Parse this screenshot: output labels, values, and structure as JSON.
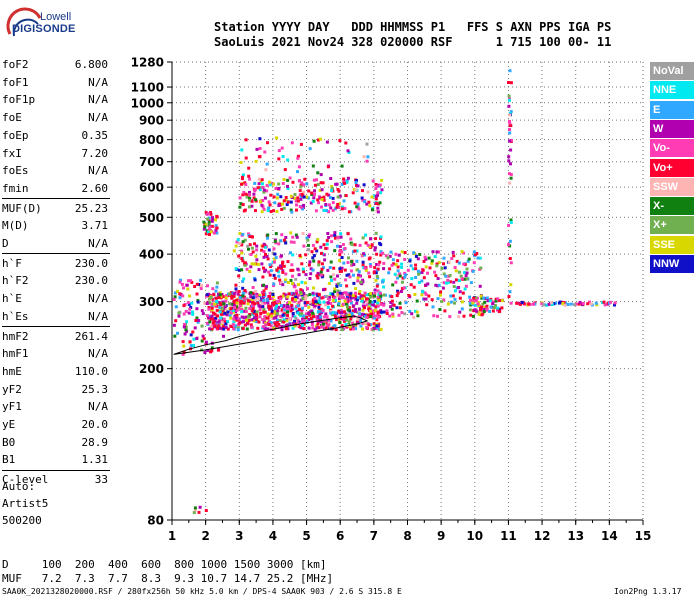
{
  "logo": {
    "line1": "Lowell",
    "line2": "DIGISONDE"
  },
  "header": {
    "line1": "Station YYYY DAY   DDD HHMMSS P1   FFS S AXN PPS IGA PS",
    "line2": "SaoLuis 2021 Nov24 328 020000 RSF      1 715 100 00- 11"
  },
  "params": [
    {
      "label": "foF2",
      "value": "6.800"
    },
    {
      "label": "foF1",
      "value": "N/A"
    },
    {
      "label": "foF1p",
      "value": "N/A"
    },
    {
      "label": "foE",
      "value": "N/A"
    },
    {
      "label": "foEp",
      "value": "0.35"
    },
    {
      "label": "fxI",
      "value": "7.20"
    },
    {
      "label": "foEs",
      "value": "N/A"
    },
    {
      "label": "fmin",
      "value": "2.60"
    },
    {
      "label": "MUF(D)",
      "value": "25.23"
    },
    {
      "label": "M(D)",
      "value": "3.71"
    },
    {
      "label": "D",
      "value": "N/A"
    },
    {
      "label": "h`F",
      "value": "230.0"
    },
    {
      "label": "h`F2",
      "value": "230.0"
    },
    {
      "label": "h`E",
      "value": "N/A"
    },
    {
      "label": "h`Es",
      "value": "N/A"
    },
    {
      "label": "hmF2",
      "value": "261.4"
    },
    {
      "label": "hmF1",
      "value": "N/A"
    },
    {
      "label": "hmE",
      "value": "110.0"
    },
    {
      "label": "yF2",
      "value": "25.3"
    },
    {
      "label": "yF1",
      "value": "N/A"
    },
    {
      "label": "yE",
      "value": "20.0"
    },
    {
      "label": "B0",
      "value": "28.9"
    },
    {
      "label": "B1",
      "value": "1.31"
    },
    {
      "label": "C-level",
      "value": "33"
    }
  ],
  "autoscaling": {
    "line1": "Auto:",
    "line2": "Artist5",
    "line3": "500200"
  },
  "legend": [
    {
      "label": "NoVal",
      "color": "#a0a0a0"
    },
    {
      "label": "NNE",
      "color": "#00e8f0"
    },
    {
      "label": "E",
      "color": "#30a8ff"
    },
    {
      "label": "W",
      "color": "#b000b0"
    },
    {
      "label": "Vo-",
      "color": "#ff3cb4"
    },
    {
      "label": "Vo+",
      "color": "#ff0030"
    },
    {
      "label": "SSW",
      "color": "#ffb4b4"
    },
    {
      "label": "X-",
      "color": "#108010"
    },
    {
      "label": "X+",
      "color": "#70b050"
    },
    {
      "label": "SSE",
      "color": "#d8d800"
    },
    {
      "label": "NNW",
      "color": "#1010c8"
    }
  ],
  "muf_table": {
    "line1": "D     100  200  400  600  800 1000 1500 3000 [km]",
    "line2": "MUF   7.2  7.3  7.7  8.3  9.3 10.7 14.7 25.2 [MHz]"
  },
  "footer": {
    "left": "SAA0K_2021328020000.RSF / 280fx256h 50 kHz 5.0 km / DPS-4 SAA0K 903 / 2.6 S 315.8 E",
    "right": "Ion2Png 1.3.17"
  },
  "chart_data": {
    "type": "scatter",
    "title": "",
    "xlabel": "",
    "ylabel": "",
    "xlim": [
      1,
      15
    ],
    "ylim": [
      80,
      1280
    ],
    "y_scale": "log",
    "x_ticks": [
      1,
      2,
      3,
      4,
      5,
      6,
      7,
      8,
      9,
      10,
      11,
      12,
      13,
      14,
      15
    ],
    "y_ticks": [
      80,
      200,
      300,
      400,
      500,
      600,
      700,
      800,
      900,
      1000,
      1100,
      1280
    ],
    "grid": true,
    "grid_style": "dotted",
    "trace": {
      "name": "",
      "x": [
        1.05,
        1.5,
        2.0,
        2.6,
        3.0,
        3.5,
        4.0,
        4.5,
        5.0,
        5.5,
        6.0,
        6.4,
        6.6,
        6.8,
        6.5,
        6.0,
        5.0,
        4.0,
        3.0,
        2.0,
        1.05
      ],
      "y": [
        218,
        225,
        231,
        237,
        243,
        249,
        254,
        259,
        264,
        268,
        272,
        275,
        272,
        267,
        262,
        257,
        248,
        240,
        232,
        224,
        218
      ]
    },
    "echo_regions": [
      {
        "f0": 1.0,
        "f1": 2.5,
        "h0": 220,
        "h1": 345,
        "density": 120
      },
      {
        "f0": 2.0,
        "f1": 7.2,
        "h0": 255,
        "h1": 320,
        "density": 900
      },
      {
        "f0": 2.8,
        "f1": 7.2,
        "h0": 300,
        "h1": 460,
        "density": 450
      },
      {
        "f0": 7.0,
        "f1": 10.2,
        "h0": 275,
        "h1": 410,
        "density": 260
      },
      {
        "f0": 9.8,
        "f1": 10.8,
        "h0": 285,
        "h1": 310,
        "density": 60
      },
      {
        "f0": 2.9,
        "f1": 7.2,
        "h0": 520,
        "h1": 640,
        "density": 260
      },
      {
        "f0": 1.9,
        "f1": 2.3,
        "h0": 450,
        "h1": 520,
        "density": 40
      },
      {
        "f0": 3.0,
        "f1": 6.8,
        "h0": 640,
        "h1": 820,
        "density": 50
      },
      {
        "f0": 10.95,
        "f1": 11.05,
        "h0": 300,
        "h1": 1270,
        "density": 40
      },
      {
        "f0": 10.9,
        "f1": 14.2,
        "h0": 296,
        "h1": 302,
        "density": 60
      },
      {
        "f0": 1.4,
        "f1": 2.0,
        "h0": 82,
        "h1": 90,
        "density": 6
      }
    ]
  }
}
